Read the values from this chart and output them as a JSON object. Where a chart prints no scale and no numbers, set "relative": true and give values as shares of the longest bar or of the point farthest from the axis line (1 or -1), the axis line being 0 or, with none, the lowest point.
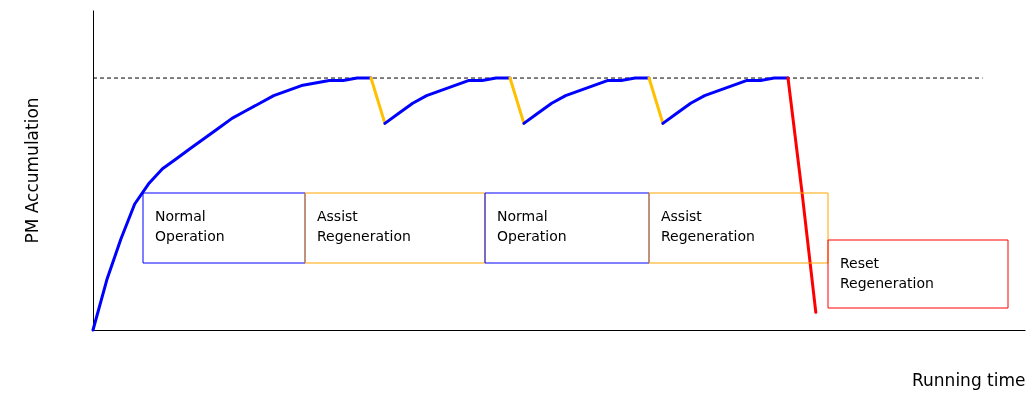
{
  "chart_data": {
    "type": "line",
    "relative": true,
    "ylabel": "PM Accumulation",
    "xlabel": "Running time",
    "categories": [
      null,
      null,
      null,
      null,
      null,
      null,
      null,
      null,
      null,
      null,
      null,
      null,
      null,
      null,
      null,
      null,
      null,
      null,
      null,
      null,
      null,
      null,
      null,
      null,
      null,
      null,
      null,
      null,
      null,
      null,
      null,
      null,
      null,
      null,
      null,
      null,
      null,
      null,
      null,
      null,
      null,
      null,
      null,
      null,
      null,
      null,
      null,
      null,
      null,
      null,
      null,
      null,
      null,
      null,
      null,
      null,
      null,
      null,
      null,
      null,
      null,
      null,
      null,
      null,
      null
    ],
    "series": [
      {
        "color": "#0000ff",
        "values": [
          0,
          0.2,
          0.36,
          0.5,
          0.58,
          0.64,
          0.68,
          0.72,
          0.76,
          0.8,
          0.84,
          0.87,
          0.9,
          0.93,
          0.95,
          0.97,
          0.98,
          0.99,
          0.99,
          1.0,
          1.0,
          null,
          null,
          null,
          null,
          null,
          null,
          null,
          null,
          null,
          null,
          null,
          null,
          null,
          null,
          null,
          null,
          null,
          null,
          null,
          null,
          null,
          null,
          null,
          null,
          null,
          null,
          null,
          null,
          null,
          null,
          null,
          null,
          null,
          null,
          null,
          null,
          null,
          null,
          null,
          null,
          null,
          null,
          null,
          null
        ]
      },
      {
        "color": "#ffc000",
        "values": [
          null,
          null,
          null,
          null,
          null,
          null,
          null,
          null,
          null,
          null,
          null,
          null,
          null,
          null,
          null,
          null,
          null,
          null,
          null,
          null,
          1.0,
          0.82,
          null,
          null,
          null,
          null,
          null,
          null,
          null,
          null,
          null,
          null,
          null,
          null,
          null,
          null,
          null,
          null,
          null,
          null,
          null,
          null,
          null,
          null,
          null,
          null,
          null,
          null,
          null,
          null,
          null,
          null,
          null,
          null,
          null,
          null,
          null,
          null,
          null,
          null,
          null,
          null,
          null,
          null,
          null
        ]
      },
      {
        "color": "#0000ff",
        "values": [
          null,
          null,
          null,
          null,
          null,
          null,
          null,
          null,
          null,
          null,
          null,
          null,
          null,
          null,
          null,
          null,
          null,
          null,
          null,
          null,
          null,
          0.82,
          0.86,
          0.9,
          0.93,
          0.95,
          0.97,
          0.99,
          0.99,
          1.0,
          1.0,
          null,
          null,
          null,
          null,
          null,
          null,
          null,
          null,
          null,
          null,
          null,
          null,
          null,
          null,
          null,
          null,
          null,
          null,
          null,
          null,
          null,
          null,
          null,
          null,
          null,
          null,
          null,
          null,
          null,
          null,
          null,
          null,
          null,
          null
        ]
      },
      {
        "color": "#ffc000",
        "values": [
          null,
          null,
          null,
          null,
          null,
          null,
          null,
          null,
          null,
          null,
          null,
          null,
          null,
          null,
          null,
          null,
          null,
          null,
          null,
          null,
          null,
          null,
          null,
          null,
          null,
          null,
          null,
          null,
          null,
          null,
          1.0,
          0.82,
          null,
          null,
          null,
          null,
          null,
          null,
          null,
          null,
          null,
          null,
          null,
          null,
          null,
          null,
          null,
          null,
          null,
          null,
          null,
          null,
          null,
          null,
          null,
          null,
          null,
          null,
          null,
          null,
          null,
          null,
          null,
          null,
          null
        ]
      },
      {
        "color": "#0000ff",
        "values": [
          null,
          null,
          null,
          null,
          null,
          null,
          null,
          null,
          null,
          null,
          null,
          null,
          null,
          null,
          null,
          null,
          null,
          null,
          null,
          null,
          null,
          null,
          null,
          null,
          null,
          null,
          null,
          null,
          null,
          null,
          null,
          0.82,
          0.86,
          0.9,
          0.93,
          0.95,
          0.97,
          0.99,
          0.99,
          1.0,
          1.0,
          null,
          null,
          null,
          null,
          null,
          null,
          null,
          null,
          null,
          null,
          null,
          null,
          null,
          null,
          null,
          null,
          null,
          null,
          null,
          null,
          null,
          null,
          null,
          null
        ]
      },
      {
        "color": "#ffc000",
        "values": [
          null,
          null,
          null,
          null,
          null,
          null,
          null,
          null,
          null,
          null,
          null,
          null,
          null,
          null,
          null,
          null,
          null,
          null,
          null,
          null,
          null,
          null,
          null,
          null,
          null,
          null,
          null,
          null,
          null,
          null,
          null,
          null,
          null,
          null,
          null,
          null,
          null,
          null,
          null,
          null,
          1.0,
          0.82,
          null,
          null,
          null,
          null,
          null,
          null,
          null,
          null,
          null,
          null,
          null,
          null,
          null,
          null,
          null,
          null,
          null,
          null,
          null,
          null,
          null,
          null,
          null
        ]
      },
      {
        "color": "#0000ff",
        "values": [
          null,
          null,
          null,
          null,
          null,
          null,
          null,
          null,
          null,
          null,
          null,
          null,
          null,
          null,
          null,
          null,
          null,
          null,
          null,
          null,
          null,
          null,
          null,
          null,
          null,
          null,
          null,
          null,
          null,
          null,
          null,
          null,
          null,
          null,
          null,
          null,
          null,
          null,
          null,
          null,
          null,
          0.82,
          0.86,
          0.9,
          0.93,
          0.95,
          0.97,
          0.99,
          0.99,
          1.0,
          1.0,
          null,
          null,
          null,
          null,
          null,
          null,
          null,
          null,
          null,
          null,
          null,
          null,
          null,
          null
        ]
      },
      {
        "color": "#ff0000",
        "values": [
          null,
          null,
          null,
          null,
          null,
          null,
          null,
          null,
          null,
          null,
          null,
          null,
          null,
          null,
          null,
          null,
          null,
          null,
          null,
          null,
          null,
          null,
          null,
          null,
          null,
          null,
          null,
          null,
          null,
          null,
          null,
          null,
          null,
          null,
          null,
          null,
          null,
          null,
          null,
          null,
          null,
          null,
          null,
          null,
          null,
          null,
          null,
          null,
          null,
          null,
          1.0,
          0.55,
          0.07,
          null,
          null,
          null,
          null,
          null,
          null,
          null,
          null,
          null,
          null,
          null,
          null
        ]
      }
    ],
    "ref_lines": [
      {
        "axis": "y",
        "value": 1,
        "color": "#000000",
        "line_style": "dashed"
      }
    ],
    "annotations": [
      "Normal Operation",
      "Assist Regeneration",
      "Normal Operation",
      "Assist Regeneration",
      "Reset Regeneration"
    ],
    "grid": false
  }
}
